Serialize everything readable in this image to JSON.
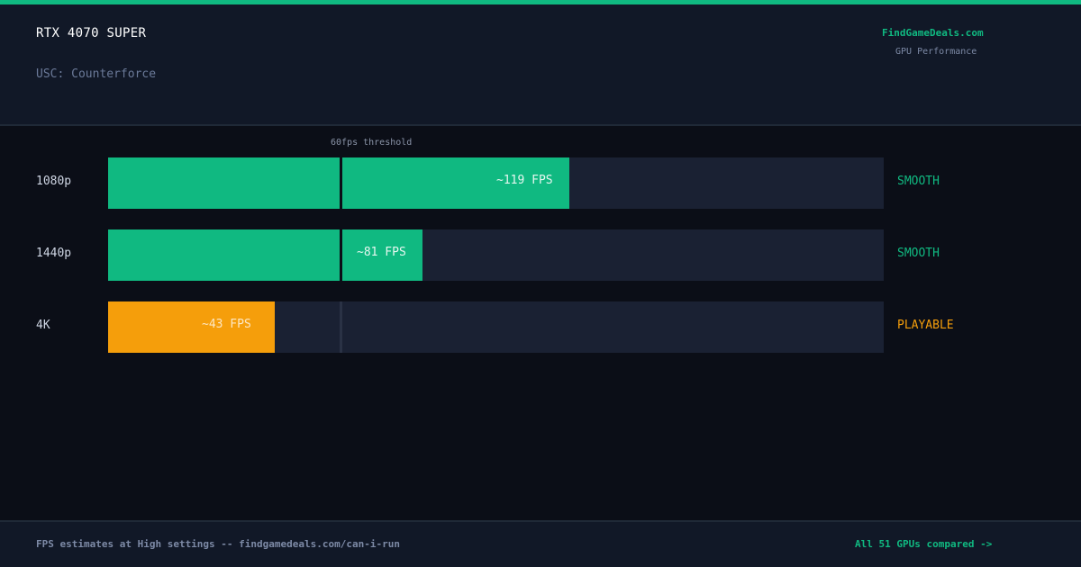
{
  "header": {
    "gpu": "RTX 4070 SUPER",
    "game": "USC: Counterforce",
    "brand": "FindGameDeals.com",
    "brand_sub": "GPU Performance"
  },
  "chart_data": {
    "type": "bar",
    "orientation": "horizontal",
    "title": "RTX 4070 SUPER",
    "subtitle": "USC: Counterforce",
    "categories": [
      "1080p",
      "1440p",
      "4K"
    ],
    "values": [
      119,
      81,
      43
    ],
    "value_labels": [
      "~119 FPS",
      "~81 FPS",
      "~43 FPS"
    ],
    "statuses": [
      "SMOOTH",
      "SMOOTH",
      "PLAYABLE"
    ],
    "colors": [
      "#10b981",
      "#10b981",
      "#f59e0b"
    ],
    "status_colors": [
      "#10b981",
      "#10b981",
      "#f59e0b"
    ],
    "xlim": [
      0,
      200
    ],
    "threshold": {
      "value": 60,
      "label": "60fps threshold"
    },
    "track_color": "#1a2133",
    "grid": false,
    "legend": "none"
  },
  "footer": {
    "note": "FPS estimates at High settings -- findgamedeals.com/can-i-run",
    "link": "All 51 GPUs compared ->"
  }
}
